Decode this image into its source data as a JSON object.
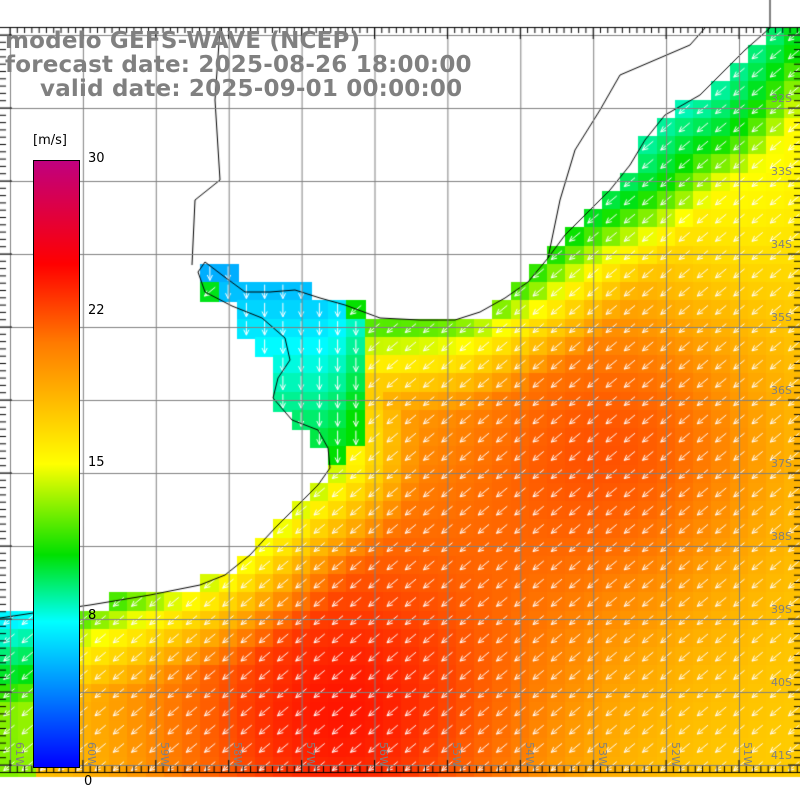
{
  "title": {
    "model": "modelo GEFS-WAVE (NCEP)",
    "forecast": "forecast date: 2025-08-26 18:00:00",
    "valid": "valid date: 2025-09-01 00:00:00"
  },
  "colorbar": {
    "unit": "[m/s]",
    "labels": [
      "30",
      "22",
      "15",
      "8",
      "0"
    ],
    "stops": [
      "#c0007f",
      "#ff0000",
      "#ff7a00",
      "#ffff00",
      "#00e000",
      "#00ffff",
      "#0080ff",
      "#0000ff"
    ]
  },
  "axes": {
    "longitudes": [
      "61W",
      "60W",
      "59W",
      "58W",
      "57W",
      "56W",
      "55W",
      "54W",
      "53W",
      "52W",
      "51W"
    ],
    "latitudes": [
      "32S",
      "33S",
      "34S",
      "35S",
      "36S",
      "37S",
      "38S",
      "39S",
      "40S",
      "41S"
    ]
  }
}
